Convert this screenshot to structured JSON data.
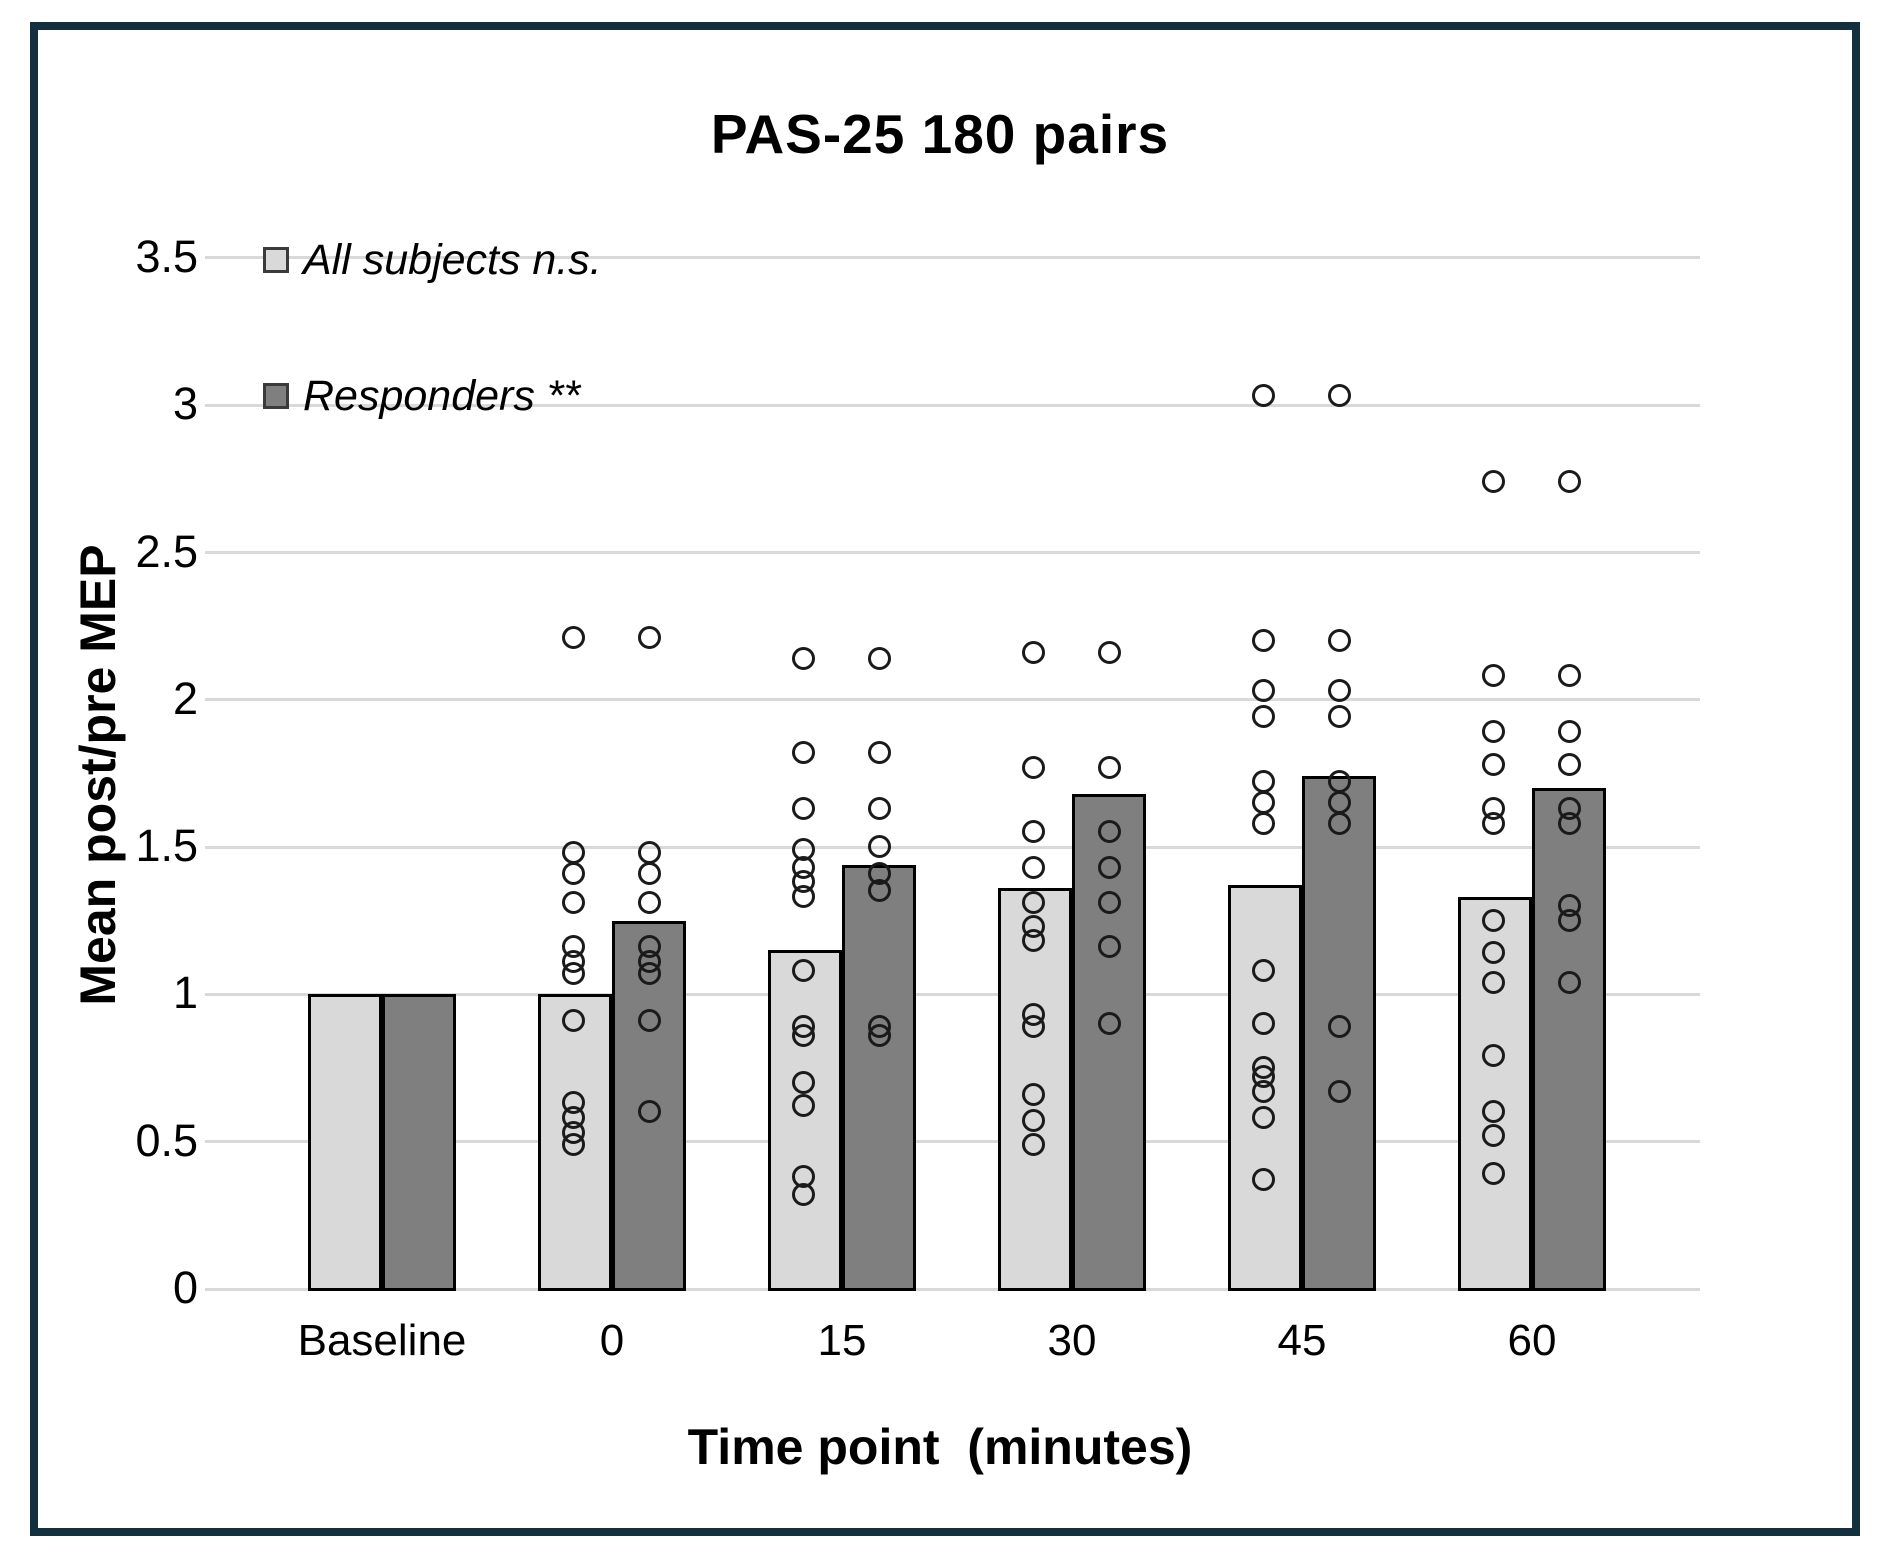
{
  "frame": {
    "border_color": "#14303e",
    "background": "#ffffff"
  },
  "chart_data": {
    "type": "bar",
    "title": "PAS-25 180 pairs",
    "xlabel": "Time point  (minutes)",
    "ylabel": "Mean post/pre MEP",
    "categories": [
      "Baseline",
      "0",
      "15",
      "30",
      "45",
      "60"
    ],
    "ylim": [
      0,
      3.5
    ],
    "yticks": [
      "0",
      "0.5",
      "1",
      "1.5",
      "2",
      "2.5",
      "3",
      "3.5"
    ],
    "grid": true,
    "legend_position": "top-left",
    "gridline_color": "#d9d9d9",
    "point_style": {
      "shape": "open-circle",
      "stroke": "#1a1a1a",
      "fill": "none"
    },
    "series": [
      {
        "name": "All subjects n.s.",
        "color": "#d9d9d9",
        "border_color": "#000000",
        "values": [
          1.0,
          1.0,
          1.15,
          1.36,
          1.37,
          1.33
        ],
        "points": [
          [],
          [
            2.21,
            1.48,
            1.41,
            1.31,
            1.16,
            1.11,
            1.07,
            0.91,
            0.63,
            0.58,
            0.53,
            0.49
          ],
          [
            2.14,
            1.82,
            1.63,
            1.49,
            1.43,
            1.38,
            1.33,
            1.08,
            0.89,
            0.86,
            0.7,
            0.62,
            0.38,
            0.32
          ],
          [
            2.16,
            1.77,
            1.55,
            1.43,
            1.31,
            1.23,
            1.18,
            0.93,
            0.89,
            0.66,
            0.57,
            0.49
          ],
          [
            3.03,
            2.2,
            2.03,
            1.94,
            1.72,
            1.65,
            1.58,
            1.08,
            0.9,
            0.75,
            0.72,
            0.67,
            0.58,
            0.37
          ],
          [
            2.74,
            2.08,
            1.89,
            1.78,
            1.63,
            1.58,
            1.25,
            1.14,
            1.04,
            0.79,
            0.6,
            0.52,
            0.39
          ]
        ]
      },
      {
        "name": "Responders **",
        "color": "#7f7f7f",
        "border_color": "#000000",
        "values": [
          1.0,
          1.25,
          1.44,
          1.68,
          1.74,
          1.7
        ],
        "points": [
          [],
          [
            2.21,
            1.48,
            1.41,
            1.31,
            1.16,
            1.11,
            1.07,
            0.91,
            0.6
          ],
          [
            2.14,
            1.82,
            1.63,
            1.5,
            1.41,
            1.35,
            0.89,
            0.86
          ],
          [
            2.16,
            1.77,
            1.55,
            1.43,
            1.31,
            1.16,
            0.9
          ],
          [
            3.03,
            2.2,
            2.03,
            1.94,
            1.72,
            1.65,
            1.58,
            0.89,
            0.67
          ],
          [
            2.74,
            2.08,
            1.89,
            1.78,
            1.63,
            1.58,
            1.3,
            1.25,
            1.04
          ]
        ]
      }
    ]
  }
}
